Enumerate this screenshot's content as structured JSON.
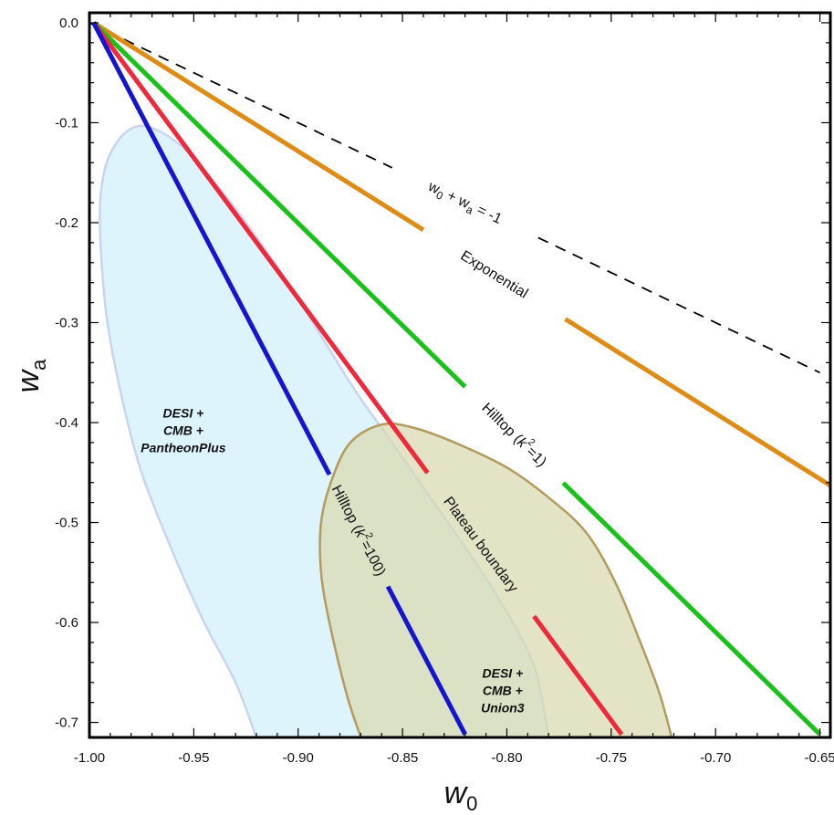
{
  "chart_data": {
    "type": "line",
    "xlabel": "w",
    "xlabel_subscript": "0",
    "ylabel": "w",
    "ylabel_subscript": "a",
    "xlim": [
      -1.0,
      -0.645
    ],
    "ylim": [
      -0.715,
      0.01
    ],
    "xticks": [
      -1.0,
      -0.95,
      -0.9,
      -0.85,
      -0.8,
      -0.75,
      -0.7,
      -0.65
    ],
    "xtick_labels": [
      "-1.00",
      "-0.95",
      "-0.90",
      "-0.85",
      "-0.80",
      "-0.75",
      "-0.70",
      "-0.65"
    ],
    "yticks": [
      0.0,
      -0.1,
      -0.2,
      -0.3,
      -0.4,
      -0.5,
      -0.6,
      -0.7
    ],
    "ytick_labels": [
      "0.0",
      "-0.1",
      "-0.2",
      "-0.3",
      "-0.4",
      "-0.5",
      "-0.6",
      "-0.7"
    ],
    "grid": false,
    "legend": "none",
    "series": [
      {
        "name": "w₀ + wₐ = -1",
        "label_parts": [
          "w",
          "0",
          " + w",
          "a",
          " = -1"
        ],
        "style": "dashed",
        "color": "#000000",
        "x": [
          -1.0,
          -0.65
        ],
        "y": [
          0.0,
          -0.35
        ],
        "gap": [
          -0.855,
          -0.785
        ]
      },
      {
        "name": "Exponential",
        "label_parts": [
          "Exponential"
        ],
        "style": "solid",
        "color": "#DE8C16",
        "x": [
          -0.998,
          -0.645
        ],
        "y": [
          0.0,
          -0.463
        ],
        "gap": [
          -0.84,
          -0.772
        ]
      },
      {
        "name": "Hilltop (k²=1)",
        "label_parts": [
          "Hilltop (",
          "k",
          "2",
          "=1)"
        ],
        "style": "solid",
        "color": "#19C219",
        "x": [
          -0.998,
          -0.65
        ],
        "y": [
          0.0,
          -0.712
        ],
        "gap": [
          -0.82,
          -0.773
        ]
      },
      {
        "name": "Plateau boundary",
        "label_parts": [
          "Plateau boundary"
        ],
        "style": "solid",
        "color": "#F0283C",
        "x": [
          -0.998,
          -0.745
        ],
        "y": [
          0.0,
          -0.712
        ],
        "gap": [
          -0.838,
          -0.787
        ]
      },
      {
        "name": "Hilltop (k²=100)",
        "label_parts": [
          "Hilltop (",
          "k",
          "2",
          "=100)"
        ],
        "style": "solid",
        "color": "#1414D2",
        "x": [
          -0.998,
          -0.82
        ],
        "y": [
          0.0,
          -0.712
        ],
        "gap": [
          -0.885,
          -0.857
        ]
      }
    ],
    "regions": [
      {
        "name": "DESI + CMB + PantheonPlus",
        "label_lines": [
          "DESI +",
          "CMB +",
          "PantheonPlus"
        ],
        "fill": "#DDF4FC",
        "stroke": "#C9D4F2",
        "outline": [
          [
            -0.92,
            -0.715
          ],
          [
            -0.93,
            -0.66
          ],
          [
            -0.945,
            -0.6
          ],
          [
            -0.96,
            -0.53
          ],
          [
            -0.975,
            -0.45
          ],
          [
            -0.985,
            -0.37
          ],
          [
            -0.992,
            -0.29
          ],
          [
            -0.995,
            -0.2
          ],
          [
            -0.993,
            -0.15
          ],
          [
            -0.987,
            -0.12
          ],
          [
            -0.978,
            -0.104
          ],
          [
            -0.968,
            -0.107
          ],
          [
            -0.955,
            -0.125
          ],
          [
            -0.94,
            -0.16
          ],
          [
            -0.925,
            -0.2
          ],
          [
            -0.905,
            -0.26
          ],
          [
            -0.89,
            -0.31
          ],
          [
            -0.872,
            -0.37
          ],
          [
            -0.855,
            -0.42
          ],
          [
            -0.835,
            -0.48
          ],
          [
            -0.815,
            -0.54
          ],
          [
            -0.797,
            -0.6
          ],
          [
            -0.786,
            -0.65
          ],
          [
            -0.78,
            -0.715
          ]
        ],
        "label_at": [
          -0.955,
          -0.395
        ]
      },
      {
        "name": "DESI + CMB + Union3",
        "label_lines": [
          "DESI +",
          "CMB +",
          "Union3"
        ],
        "fill": "#D8D9B0",
        "fill_opacity": 0.72,
        "stroke": "#B59A5E",
        "outline": [
          [
            -0.87,
            -0.715
          ],
          [
            -0.877,
            -0.67
          ],
          [
            -0.885,
            -0.6
          ],
          [
            -0.889,
            -0.55
          ],
          [
            -0.889,
            -0.5
          ],
          [
            -0.884,
            -0.458
          ],
          [
            -0.875,
            -0.42
          ],
          [
            -0.86,
            -0.402
          ],
          [
            -0.845,
            -0.405
          ],
          [
            -0.825,
            -0.42
          ],
          [
            -0.8,
            -0.445
          ],
          [
            -0.78,
            -0.475
          ],
          [
            -0.762,
            -0.51
          ],
          [
            -0.748,
            -0.56
          ],
          [
            -0.736,
            -0.62
          ],
          [
            -0.727,
            -0.67
          ],
          [
            -0.721,
            -0.715
          ]
        ],
        "label_at": [
          -0.802,
          -0.655
        ]
      }
    ]
  }
}
